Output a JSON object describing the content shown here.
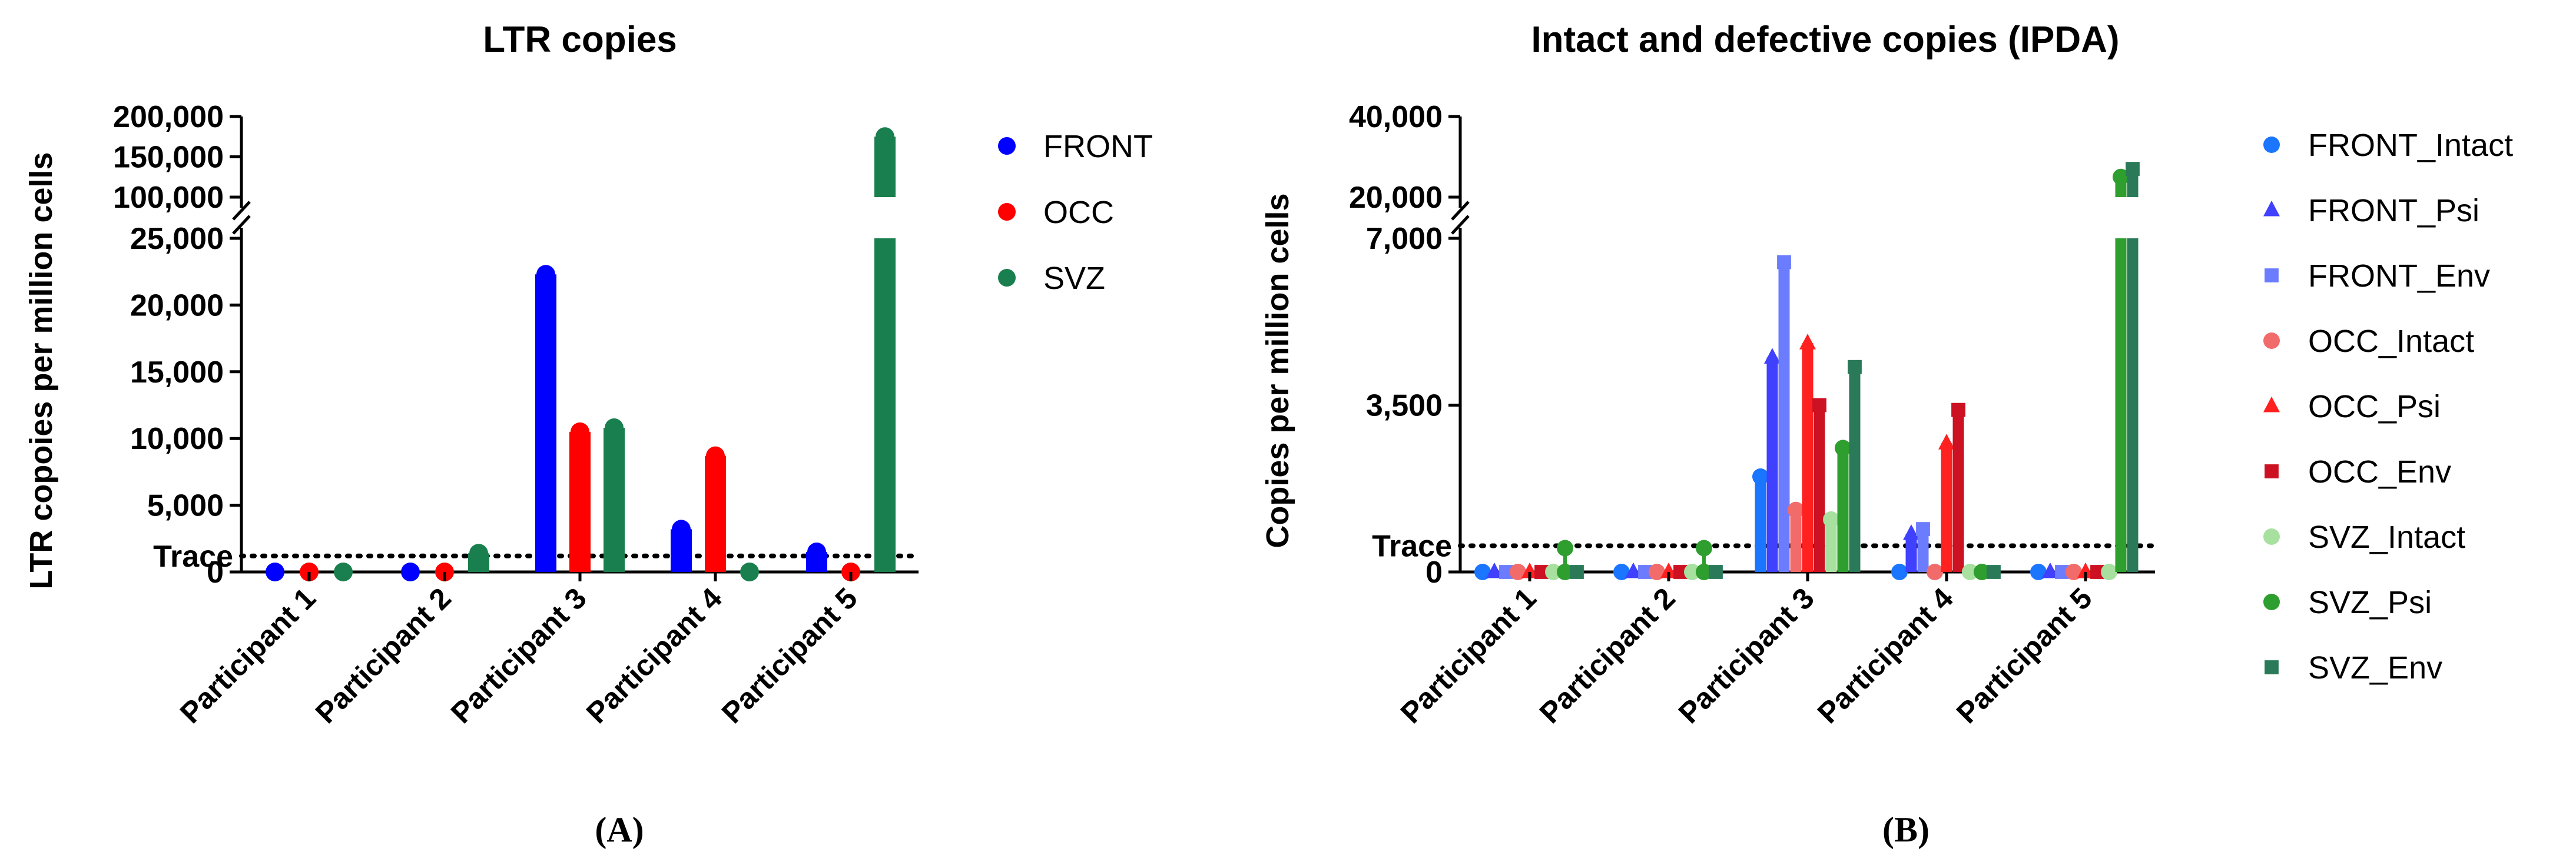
{
  "chart_data": [
    {
      "type": "bar",
      "panel_label": "(A)",
      "title": "LTR copies",
      "xlabel": "",
      "ylabel": "LTR copoies per million cells",
      "categories": [
        "Participant 1",
        "Participant 2",
        "Participant 3",
        "Participant 4",
        "Participant 5"
      ],
      "series": [
        {
          "name": "FRONT",
          "color": "#0000ff",
          "marker": "circle",
          "values": [
            0,
            0,
            22300,
            3200,
            1500
          ]
        },
        {
          "name": "OCC",
          "color": "#ff0000",
          "marker": "circle",
          "values": [
            0,
            0,
            10500,
            8700,
            0
          ]
        },
        {
          "name": "SVZ",
          "color": "#1a7f4e",
          "marker": "circle",
          "values": [
            0,
            1400,
            10800,
            0,
            175000
          ]
        }
      ],
      "axis_break": {
        "lower_max": 25000,
        "upper_min": 100000,
        "upper_max": 200000
      },
      "y_ticks_lower": [
        {
          "value": 0,
          "label": "0"
        },
        {
          "value": 5000,
          "label": "5,000"
        },
        {
          "value": 10000,
          "label": "10,000"
        },
        {
          "value": 15000,
          "label": "15,000"
        },
        {
          "value": 20000,
          "label": "20,000"
        },
        {
          "value": 25000,
          "label": "25,000"
        }
      ],
      "y_ticks_upper": [
        {
          "value": 100000,
          "label": "100,000"
        },
        {
          "value": 150000,
          "label": "150,000"
        },
        {
          "value": 200000,
          "label": "200,000"
        }
      ],
      "trace": {
        "label": "Trace",
        "value": 1200
      },
      "legend": "right"
    },
    {
      "type": "bar",
      "panel_label": "(B)",
      "title": "Intact and defective copies (IPDA)",
      "xlabel": "",
      "ylabel": "Copies per million cells",
      "categories": [
        "Participant 1",
        "Participant 2",
        "Participant 3",
        "Participant 4",
        "Participant 5"
      ],
      "series": [
        {
          "name": "FRONT_Intact",
          "color": "#1a75ff",
          "marker": "circle",
          "values": [
            0,
            0,
            2000,
            0,
            0
          ]
        },
        {
          "name": "FRONT_Psi",
          "color": "#4040ff",
          "marker": "triangle",
          "values": [
            0,
            0,
            4500,
            800,
            0
          ]
        },
        {
          "name": "FRONT_Env",
          "color": "#6b7cff",
          "marker": "square",
          "values": [
            0,
            0,
            6500,
            900,
            0
          ]
        },
        {
          "name": "OCC_Intact",
          "color": "#f26b6b",
          "marker": "circle",
          "values": [
            0,
            0,
            1300,
            0,
            0
          ]
        },
        {
          "name": "OCC_Psi",
          "color": "#ff2020",
          "marker": "triangle",
          "values": [
            0,
            0,
            4800,
            2700,
            0
          ]
        },
        {
          "name": "OCC_Env",
          "color": "#cc1122",
          "marker": "square",
          "values": [
            0,
            0,
            3500,
            3400,
            0
          ]
        },
        {
          "name": "SVZ_Intact",
          "color": "#a8e0a0",
          "marker": "circle",
          "values": [
            0,
            0,
            1100,
            0,
            0
          ]
        },
        {
          "name": "SVZ_Psi",
          "color": "#2e9e2e",
          "marker": "circle",
          "values": [
            0,
            0,
            2600,
            0,
            25000
          ]
        },
        {
          "name": "SVZ_Env",
          "color": "#2a7a5a",
          "marker": "square",
          "values": [
            0,
            0,
            4300,
            0,
            27000
          ]
        }
      ],
      "extra_points": [
        {
          "series": "SVZ_Psi",
          "category": "Participant 1",
          "value": 500
        },
        {
          "series": "SVZ_Psi",
          "category": "Participant 2",
          "value": 500
        }
      ],
      "axis_break": {
        "lower_max": 7000,
        "upper_min": 20000,
        "upper_max": 40000
      },
      "y_ticks_lower": [
        {
          "value": 0,
          "label": "0"
        },
        {
          "value": 3500,
          "label": "3,500"
        },
        {
          "value": 7000,
          "label": "7,000"
        }
      ],
      "y_ticks_upper": [
        {
          "value": 20000,
          "label": "20,000"
        },
        {
          "value": 40000,
          "label": "40,000"
        }
      ],
      "trace": {
        "label": "Trace",
        "value": 550
      },
      "legend": "right"
    }
  ]
}
